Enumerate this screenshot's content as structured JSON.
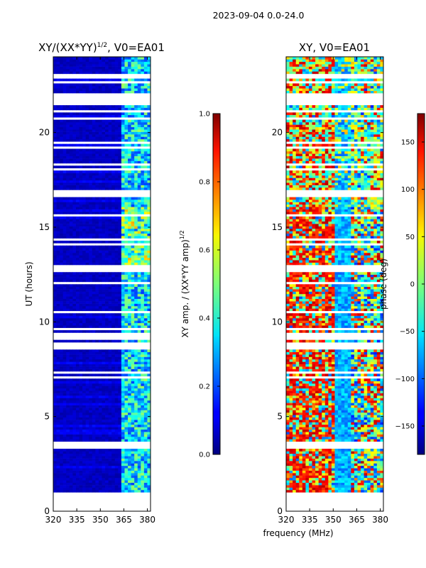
{
  "figure_title": "2023-09-04 0.0-24.0",
  "chart_data": [
    {
      "type": "heatmap",
      "title": "XY/(XX*YY)",
      "title_sup": "1/2",
      "title_suffix": ", V0=EA01",
      "xlabel": "",
      "ylabel": "UT (hours)",
      "xlim": [
        320,
        382
      ],
      "ylim": [
        0,
        24
      ],
      "x_ticks": [
        320,
        335,
        350,
        365,
        380
      ],
      "y_ticks": [
        0,
        5,
        10,
        15,
        20
      ],
      "colorbar": {
        "label": "XY amp. / (XX*YY amp)",
        "label_sup": "1/2",
        "range": [
          0.0,
          1.0
        ],
        "ticks": [
          "0.0",
          "0.2",
          "0.4",
          "0.6",
          "0.8",
          "1.0"
        ],
        "colormap": "jet"
      },
      "data_ut_range": [
        1.0,
        24.0
      ],
      "description_of_values": "mostly ~0.05 (dark blue) for 320-362 MHz; ~0.3-0.6 striping at 362-382 MHz"
    },
    {
      "type": "heatmap",
      "title": "XY, V0=EA01",
      "xlabel": "frequency (MHz)",
      "ylabel": "",
      "xlim": [
        320,
        382
      ],
      "ylim": [
        0,
        24
      ],
      "x_ticks": [
        320,
        335,
        350,
        365,
        380
      ],
      "y_ticks": [
        0,
        5,
        10,
        15,
        20
      ],
      "colorbar": {
        "label": "phase (deg)",
        "range": [
          -180,
          180
        ],
        "ticks": [
          "−150",
          "−100",
          "−50",
          "0",
          "50",
          "100",
          "150"
        ],
        "tick_values": [
          -150,
          -100,
          -50,
          0,
          50,
          100,
          150
        ],
        "colormap": "jet"
      },
      "data_ut_range": [
        1.0,
        24.0
      ],
      "description_of_values": "phase noise across band; red/yellow dominant 320-350 MHz, blue band 350-360 MHz"
    }
  ]
}
